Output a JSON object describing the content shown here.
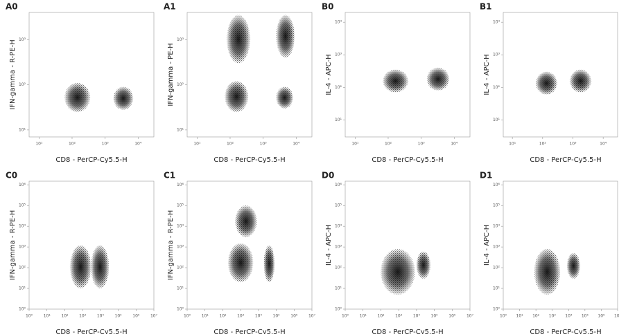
{
  "chart_data": [
    {
      "type": "density",
      "title": "A0",
      "x_label": "CD8 - PerCP-Cy5.5-H",
      "y_label": "IFN-gamma - R-PE-H",
      "log_x": true,
      "log_y": true,
      "color": "#000000",
      "xlim": [
        5,
        30000
      ],
      "ylim": [
        7,
        4000
      ],
      "xticks": [
        {
          "value": 10,
          "label": "10¹"
        },
        {
          "value": 100,
          "label": "10²"
        },
        {
          "value": 1000,
          "label": "10³"
        },
        {
          "value": 10000,
          "label": "10⁴"
        }
      ],
      "yticks": [
        {
          "value": 10,
          "label": "10¹"
        },
        {
          "value": 100,
          "label": "10²"
        },
        {
          "value": 1000,
          "label": "10³"
        }
      ],
      "clusters": [
        {
          "x_range": [
            60,
            350
          ],
          "y_range": [
            25,
            110
          ]
        },
        {
          "x_range": [
            1800,
            7000
          ],
          "y_range": [
            28,
            90
          ]
        }
      ]
    },
    {
      "type": "density",
      "title": "A1",
      "x_label": "CD8 - PerCP-Cy5.5-H",
      "y_label": "IFN-gamma - PE-H",
      "log_x": true,
      "log_y": true,
      "color": "#000000",
      "xlim": [
        5,
        30000
      ],
      "ylim": [
        7,
        4000
      ],
      "xticks": [
        {
          "value": 10,
          "label": "10¹"
        },
        {
          "value": 100,
          "label": "10²"
        },
        {
          "value": 1000,
          "label": "10³"
        },
        {
          "value": 10000,
          "label": "10⁴"
        }
      ],
      "yticks": [
        {
          "value": 10,
          "label": "10¹"
        },
        {
          "value": 100,
          "label": "10²"
        },
        {
          "value": 1000,
          "label": "10³"
        }
      ],
      "clusters": [
        {
          "x_range": [
            70,
            350
          ],
          "y_range": [
            25,
            120
          ]
        },
        {
          "x_range": [
            2500,
            8000
          ],
          "y_range": [
            30,
            90
          ]
        },
        {
          "x_range": [
            80,
            400
          ],
          "y_range": [
            300,
            3500
          ]
        },
        {
          "x_range": [
            2500,
            9000
          ],
          "y_range": [
            400,
            3500
          ]
        }
      ]
    },
    {
      "type": "density",
      "title": "B0",
      "x_label": "CD8 - PerCP-Cy5.5-H",
      "y_label": "IL-4 - APC-H",
      "log_x": true,
      "log_y": true,
      "color": "#000000",
      "xlim": [
        5,
        30000
      ],
      "ylim": [
        3,
        20000
      ],
      "xticks": [
        {
          "value": 10,
          "label": "10¹"
        },
        {
          "value": 100,
          "label": "10²"
        },
        {
          "value": 1000,
          "label": "10³"
        },
        {
          "value": 10000,
          "label": "10⁴"
        }
      ],
      "yticks": [
        {
          "value": 10,
          "label": "10¹"
        },
        {
          "value": 100,
          "label": "10²"
        },
        {
          "value": 1000,
          "label": "10³"
        },
        {
          "value": 10000,
          "label": "10⁴"
        }
      ],
      "clusters": [
        {
          "x_range": [
            70,
            400
          ],
          "y_range": [
            70,
            350
          ]
        },
        {
          "x_range": [
            1500,
            7000
          ],
          "y_range": [
            80,
            400
          ]
        }
      ]
    },
    {
      "type": "density",
      "title": "B1",
      "x_label": "CD8 - PerCP-Cy5.5-H",
      "y_label": "IL-4 - APC-H",
      "log_x": true,
      "log_y": true,
      "color": "#000000",
      "xlim": [
        5,
        30000
      ],
      "ylim": [
        3,
        20000
      ],
      "xticks": [
        {
          "value": 10,
          "label": "10¹"
        },
        {
          "value": 100,
          "label": "10²"
        },
        {
          "value": 1000,
          "label": "10³"
        },
        {
          "value": 10000,
          "label": "10⁴"
        }
      ],
      "yticks": [
        {
          "value": 10,
          "label": "10¹"
        },
        {
          "value": 100,
          "label": "10²"
        },
        {
          "value": 1000,
          "label": "10³"
        },
        {
          "value": 10000,
          "label": "10⁴"
        }
      ],
      "clusters": [
        {
          "x_range": [
            60,
            300
          ],
          "y_range": [
            60,
            300
          ]
        },
        {
          "x_range": [
            800,
            4000
          ],
          "y_range": [
            70,
            350
          ]
        }
      ]
    },
    {
      "type": "density",
      "title": "C0",
      "x_label": "CD8 - PerCP-Cy5.5-H",
      "y_label": "IFN-gamma - R-PE-H",
      "log_x": true,
      "log_y": true,
      "color": "#000000",
      "xlim": [
        1,
        10000000
      ],
      "ylim": [
        1,
        1500000
      ],
      "xticks": [
        {
          "value": 1,
          "label": "10⁰"
        },
        {
          "value": 10,
          "label": "10¹"
        },
        {
          "value": 100,
          "label": "10²"
        },
        {
          "value": 1000,
          "label": "10³"
        },
        {
          "value": 10000,
          "label": "10⁴"
        },
        {
          "value": 100000,
          "label": "10⁵"
        },
        {
          "value": 1000000,
          "label": "10⁶"
        },
        {
          "value": 10000000,
          "label": "10⁷"
        }
      ],
      "yticks": [
        {
          "value": 1,
          "label": "10⁰"
        },
        {
          "value": 10,
          "label": "10¹"
        },
        {
          "value": 100,
          "label": "10²"
        },
        {
          "value": 1000,
          "label": "10³"
        },
        {
          "value": 10000,
          "label": "10⁴"
        },
        {
          "value": 100000,
          "label": "10⁵"
        },
        {
          "value": 1000000,
          "label": "10⁶"
        }
      ],
      "clusters": [
        {
          "x_range": [
            200,
            3000
          ],
          "y_range": [
            10,
            1200
          ]
        },
        {
          "x_range": [
            3000,
            30000
          ],
          "y_range": [
            10,
            1200
          ]
        }
      ]
    },
    {
      "type": "density",
      "title": "C1",
      "x_label": "CD8 - PerCP-Cy5.5-H",
      "y_label": "IFN-gamma - R-PE-H",
      "log_x": true,
      "log_y": true,
      "color": "#000000",
      "xlim": [
        1,
        10000000
      ],
      "ylim": [
        1,
        1500000
      ],
      "xticks": [
        {
          "value": 1,
          "label": "10⁰"
        },
        {
          "value": 10,
          "label": "10¹"
        },
        {
          "value": 100,
          "label": "10²"
        },
        {
          "value": 1000,
          "label": "10³"
        },
        {
          "value": 10000,
          "label": "10⁴"
        },
        {
          "value": 100000,
          "label": "10⁵"
        },
        {
          "value": 1000000,
          "label": "10⁶"
        },
        {
          "value": 10000000,
          "label": "10⁷"
        }
      ],
      "yticks": [
        {
          "value": 1,
          "label": "10⁰"
        },
        {
          "value": 10,
          "label": "10¹"
        },
        {
          "value": 100,
          "label": "10²"
        },
        {
          "value": 1000,
          "label": "10³"
        },
        {
          "value": 10000,
          "label": "10⁴"
        },
        {
          "value": 100000,
          "label": "10⁵"
        },
        {
          "value": 1000000,
          "label": "10⁶"
        }
      ],
      "clusters": [
        {
          "x_range": [
            200,
            5000
          ],
          "y_range": [
            20,
            1500
          ]
        },
        {
          "x_range": [
            20000,
            80000
          ],
          "y_range": [
            20,
            1200
          ]
        },
        {
          "x_range": [
            500,
            8000
          ],
          "y_range": [
            3000,
            100000
          ]
        }
      ]
    },
    {
      "type": "density",
      "title": "D0",
      "x_label": "CD8 - PerCP-Cy5.5-H",
      "y_label": "IL-4 - APC-H",
      "log_x": true,
      "log_y": true,
      "color": "#000000",
      "xlim": [
        1,
        10000000
      ],
      "ylim": [
        1,
        1500000
      ],
      "xticks": [
        {
          "value": 1,
          "label": "10⁰"
        },
        {
          "value": 10,
          "label": "10¹"
        },
        {
          "value": 100,
          "label": "10²"
        },
        {
          "value": 1000,
          "label": "10³"
        },
        {
          "value": 10000,
          "label": "10⁴"
        },
        {
          "value": 100000,
          "label": "10⁵"
        },
        {
          "value": 1000000,
          "label": "10⁶"
        },
        {
          "value": 10000000,
          "label": "10⁷"
        }
      ],
      "yticks": [
        {
          "value": 1,
          "label": "10⁰"
        },
        {
          "value": 10,
          "label": "10¹"
        },
        {
          "value": 100,
          "label": "10²"
        },
        {
          "value": 1000,
          "label": "10³"
        },
        {
          "value": 10000,
          "label": "10⁴"
        },
        {
          "value": 100000,
          "label": "10⁵"
        },
        {
          "value": 1000000,
          "label": "10⁶"
        }
      ],
      "clusters": [
        {
          "x_range": [
            100,
            8000
          ],
          "y_range": [
            5,
            800
          ]
        },
        {
          "x_range": [
            10000,
            60000
          ],
          "y_range": [
            30,
            600
          ]
        }
      ]
    },
    {
      "type": "density",
      "title": "D1",
      "x_label": "CD8 - PerCP-Cy5.5-H",
      "y_label": "IL-4 - APC-H",
      "log_x": true,
      "log_y": true,
      "color": "#000000",
      "xlim": [
        1,
        10000000
      ],
      "ylim": [
        1,
        1500000
      ],
      "xticks": [
        {
          "value": 1,
          "label": "10⁰"
        },
        {
          "value": 10,
          "label": "10¹"
        },
        {
          "value": 100,
          "label": "10²"
        },
        {
          "value": 1000,
          "label": "10³"
        },
        {
          "value": 10000,
          "label": "10⁴"
        },
        {
          "value": 100000,
          "label": "10⁵"
        },
        {
          "value": 1000000,
          "label": "10⁶"
        },
        {
          "value": 10000000,
          "label": "10⁷"
        }
      ],
      "yticks": [
        {
          "value": 1,
          "label": "10⁰"
        },
        {
          "value": 10,
          "label": "10¹"
        },
        {
          "value": 100,
          "label": "10²"
        },
        {
          "value": 1000,
          "label": "10³"
        },
        {
          "value": 10000,
          "label": "10⁴"
        },
        {
          "value": 100000,
          "label": "10⁵"
        },
        {
          "value": 1000000,
          "label": "10⁶"
        }
      ],
      "clusters": [
        {
          "x_range": [
            80,
            3000
          ],
          "y_range": [
            5,
            800
          ]
        },
        {
          "x_range": [
            8000,
            50000
          ],
          "y_range": [
            30,
            500
          ]
        }
      ]
    }
  ]
}
